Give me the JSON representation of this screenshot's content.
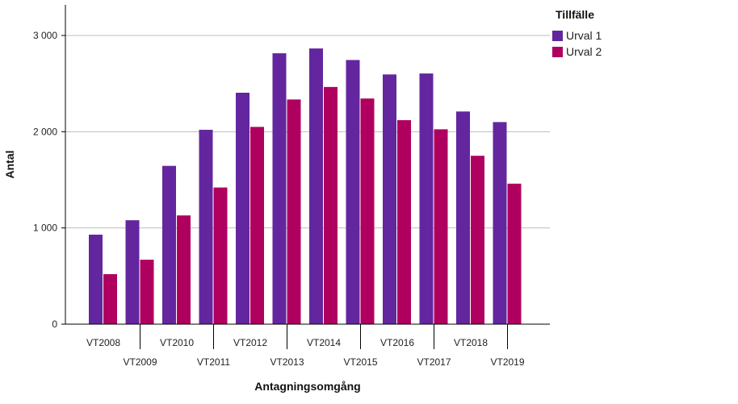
{
  "chart_data": {
    "type": "bar",
    "xlabel": "Antagningsomgång",
    "ylabel": "Antal",
    "ylim": [
      0,
      3000
    ],
    "yticks": [
      0,
      1000,
      2000,
      3000
    ],
    "ytick_labels": [
      "0",
      "1 000",
      "2 000",
      "3 000"
    ],
    "grid": true,
    "legend_title": "Tillfälle",
    "legend_position": "top-right",
    "categories": [
      "VT2008",
      "VT2009",
      "VT2010",
      "VT2011",
      "VT2012",
      "VT2013",
      "VT2014",
      "VT2015",
      "VT2016",
      "VT2017",
      "VT2018",
      "VT2019"
    ],
    "series": [
      {
        "name": "Urval 1",
        "color": "#63269E",
        "values": [
          930,
          1080,
          1645,
          2020,
          2405,
          2815,
          2865,
          2745,
          2595,
          2605,
          2210,
          2100
        ]
      },
      {
        "name": "Urval 2",
        "color": "#B0005F",
        "values": [
          520,
          670,
          1130,
          1420,
          2050,
          2335,
          2465,
          2345,
          2120,
          2025,
          1750,
          1460
        ]
      }
    ]
  }
}
